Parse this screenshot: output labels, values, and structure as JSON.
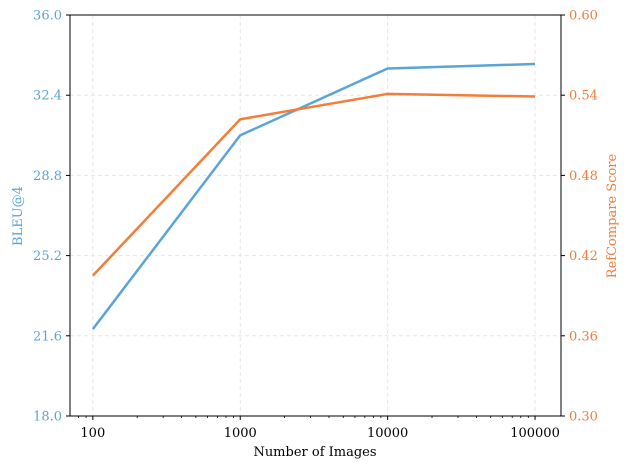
{
  "chart_data": {
    "type": "line",
    "xlabel": "Number of Images",
    "ylabel_left": "BLEU@4",
    "ylabel_right": "RefCompare Score",
    "x_scale": "log",
    "x": [
      100,
      1000,
      10000,
      100000
    ],
    "x_tick_labels": [
      "100",
      "1000",
      "10000",
      "100000"
    ],
    "ylim_left": [
      18.0,
      36.0
    ],
    "ylim_right": [
      0.3,
      0.6
    ],
    "y_ticks_left": [
      "18.0",
      "21.6",
      "25.2",
      "28.8",
      "32.4",
      "36.0"
    ],
    "y_ticks_right": [
      "0.30",
      "0.36",
      "0.42",
      "0.48",
      "0.54",
      "0.60"
    ],
    "grid": true,
    "series": [
      {
        "axis": "left",
        "color": "#5aa5d6",
        "values": [
          21.9,
          30.6,
          33.6,
          33.8
        ]
      },
      {
        "axis": "right",
        "color": "#f47d3a",
        "values": [
          0.405,
          0.522,
          0.541,
          0.539
        ]
      }
    ]
  }
}
